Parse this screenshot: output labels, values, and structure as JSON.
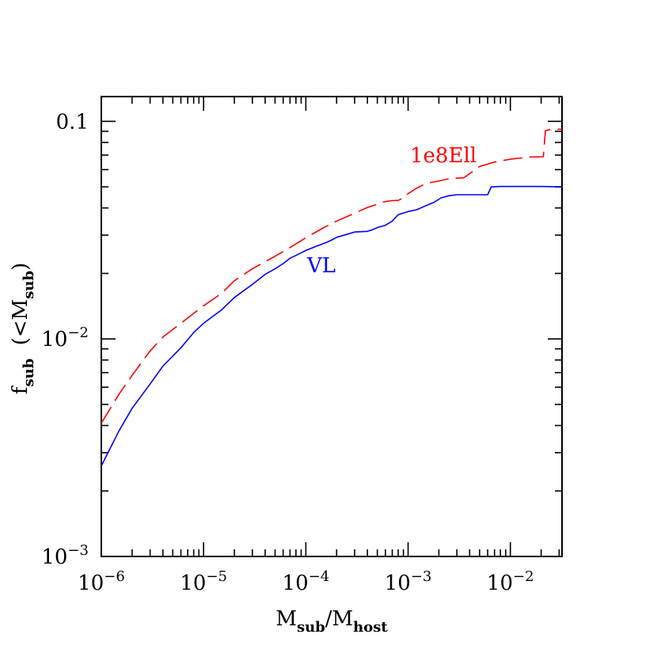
{
  "chart_data": {
    "type": "line",
    "xscale": "log",
    "yscale": "log",
    "xlim": [
      1e-06,
      0.032
    ],
    "ylim": [
      0.001,
      0.13
    ],
    "x_tick_labels": [
      {
        "value": 1e-06,
        "base": "10",
        "exp": "−6"
      },
      {
        "value": 1e-05,
        "base": "10",
        "exp": "−5"
      },
      {
        "value": 0.0001,
        "base": "10",
        "exp": "−4"
      },
      {
        "value": 0.001,
        "base": "10",
        "exp": "−3"
      },
      {
        "value": 0.01,
        "base": "10",
        "exp": "−2"
      }
    ],
    "y_tick_labels": [
      {
        "value": 0.001,
        "base": "10",
        "exp": "−3"
      },
      {
        "value": 0.01,
        "base": "10",
        "exp": "−2"
      },
      {
        "value": 0.1,
        "base": "0.1",
        "exp": ""
      }
    ],
    "xlabel": {
      "m1": "M",
      "s1": "sub",
      "slash": "/M",
      "s2": "host"
    },
    "ylabel": {
      "f": "f",
      "fs": "sub",
      "open": "  (<M",
      "ms": "sub",
      "close": ")"
    },
    "series": [
      {
        "name": "VL",
        "color": "#0000ff",
        "style": "solid",
        "x": [
          1e-06,
          1.12e-06,
          1.5e-06,
          2e-06,
          3e-06,
          4e-06,
          6e-06,
          8e-06,
          1e-05,
          1.5e-05,
          2e-05,
          3e-05,
          4e-05,
          5e-05,
          6e-05,
          7e-05,
          8e-05,
          0.0001,
          0.00013,
          0.00016,
          0.00018,
          0.0002,
          0.00025,
          0.0003,
          0.0004,
          0.00045,
          0.0005,
          0.0006,
          0.0007,
          0.0008,
          0.001,
          0.0012,
          0.0013,
          0.0015,
          0.0018,
          0.0021,
          0.0025,
          0.003,
          0.004,
          0.005,
          0.006,
          0.0065,
          0.008,
          0.01,
          0.015,
          0.02,
          0.032
        ],
        "y": [
          0.0026,
          0.0029,
          0.0038,
          0.0048,
          0.0062,
          0.0075,
          0.0091,
          0.0107,
          0.0118,
          0.0136,
          0.0155,
          0.0178,
          0.0198,
          0.021,
          0.0222,
          0.0235,
          0.0242,
          0.0255,
          0.0268,
          0.0278,
          0.0285,
          0.0293,
          0.0302,
          0.031,
          0.0312,
          0.0318,
          0.0325,
          0.0333,
          0.0348,
          0.0372,
          0.0385,
          0.0392,
          0.0398,
          0.041,
          0.0425,
          0.0445,
          0.0455,
          0.046,
          0.046,
          0.046,
          0.046,
          0.05,
          0.0502,
          0.0502,
          0.0502,
          0.0502,
          0.05
        ]
      },
      {
        "name": "1e8Ell",
        "color": "#ff0000",
        "style": "dashed",
        "x": [
          1e-06,
          1.5e-06,
          2e-06,
          3e-06,
          4e-06,
          6e-06,
          8e-06,
          1e-05,
          1.5e-05,
          2e-05,
          3e-05,
          5e-05,
          7e-05,
          0.0001,
          0.00015,
          0.0002,
          0.0003,
          0.0004,
          0.0005,
          0.0006,
          0.0007,
          0.0008,
          0.0009,
          0.001,
          0.0012,
          0.0015,
          0.002,
          0.0025,
          0.003,
          0.0035,
          0.004,
          0.005,
          0.007,
          0.01,
          0.015,
          0.021,
          0.022,
          0.025,
          0.032
        ],
        "y": [
          0.0041,
          0.0056,
          0.0068,
          0.0088,
          0.0102,
          0.0118,
          0.0131,
          0.0142,
          0.0162,
          0.0185,
          0.021,
          0.024,
          0.0263,
          0.0292,
          0.0325,
          0.0348,
          0.0378,
          0.0402,
          0.0416,
          0.0428,
          0.0432,
          0.0433,
          0.0445,
          0.0465,
          0.0492,
          0.0518,
          0.0532,
          0.0545,
          0.0548,
          0.055,
          0.0575,
          0.062,
          0.065,
          0.067,
          0.0685,
          0.0688,
          0.0905,
          0.092,
          0.092
        ]
      }
    ]
  }
}
